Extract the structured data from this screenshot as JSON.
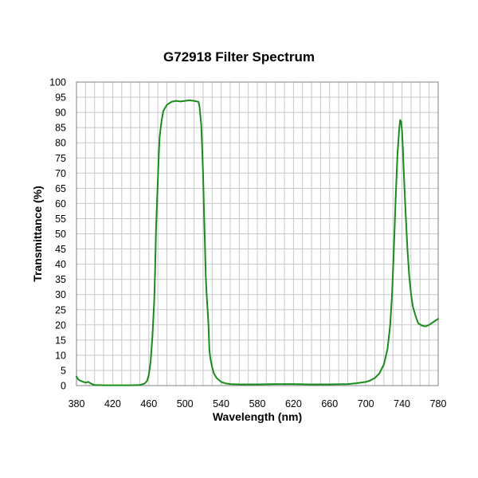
{
  "chart_data": {
    "type": "line",
    "title": "G72918 Filter Spectrum",
    "xlabel": "Wavelength (nm)",
    "ylabel": "Transmittance (%)",
    "xlim": [
      380,
      780
    ],
    "ylim": [
      0,
      100
    ],
    "x_ticks": [
      380,
      420,
      460,
      500,
      540,
      580,
      620,
      660,
      700,
      740,
      780
    ],
    "y_ticks": [
      0,
      5,
      10,
      15,
      20,
      25,
      30,
      35,
      40,
      45,
      50,
      55,
      60,
      65,
      70,
      75,
      80,
      85,
      90,
      95,
      100
    ],
    "grid": true,
    "line_color": "#1a8c1a",
    "series": [
      {
        "points": [
          [
            380,
            3
          ],
          [
            382,
            2
          ],
          [
            385,
            1.5
          ],
          [
            390,
            1
          ],
          [
            393,
            1.2
          ],
          [
            397,
            0.5
          ],
          [
            400,
            0.2
          ],
          [
            410,
            0.1
          ],
          [
            420,
            0.1
          ],
          [
            440,
            0.1
          ],
          [
            450,
            0.2
          ],
          [
            455,
            0.6
          ],
          [
            458,
            1.5
          ],
          [
            460,
            3.5
          ],
          [
            462,
            8
          ],
          [
            464,
            16
          ],
          [
            466,
            28
          ],
          [
            467,
            38
          ],
          [
            468,
            52
          ],
          [
            470,
            68
          ],
          [
            471,
            76
          ],
          [
            472,
            82
          ],
          [
            474,
            87
          ],
          [
            476,
            90.5
          ],
          [
            478,
            91.5
          ],
          [
            480,
            92.5
          ],
          [
            485,
            93.5
          ],
          [
            490,
            93.8
          ],
          [
            495,
            93.6
          ],
          [
            500,
            93.8
          ],
          [
            505,
            94
          ],
          [
            510,
            93.8
          ],
          [
            515,
            93.5
          ],
          [
            516,
            92
          ],
          [
            518,
            86
          ],
          [
            519,
            78
          ],
          [
            520,
            70
          ],
          [
            521,
            58
          ],
          [
            522,
            47
          ],
          [
            523,
            36
          ],
          [
            524,
            30
          ],
          [
            525,
            25
          ],
          [
            526,
            20
          ],
          [
            527,
            12
          ],
          [
            528,
            9
          ],
          [
            530,
            6
          ],
          [
            532,
            4
          ],
          [
            535,
            2.5
          ],
          [
            540,
            1.2
          ],
          [
            545,
            0.7
          ],
          [
            550,
            0.5
          ],
          [
            560,
            0.4
          ],
          [
            580,
            0.4
          ],
          [
            600,
            0.5
          ],
          [
            620,
            0.5
          ],
          [
            640,
            0.4
          ],
          [
            660,
            0.4
          ],
          [
            680,
            0.5
          ],
          [
            690,
            0.8
          ],
          [
            700,
            1.2
          ],
          [
            705,
            1.7
          ],
          [
            710,
            2.5
          ],
          [
            715,
            4
          ],
          [
            720,
            7
          ],
          [
            724,
            12
          ],
          [
            727,
            20
          ],
          [
            729,
            30
          ],
          [
            731,
            45
          ],
          [
            733,
            62
          ],
          [
            735,
            76
          ],
          [
            737,
            85
          ],
          [
            738,
            87.5
          ],
          [
            739,
            87
          ],
          [
            740,
            84
          ],
          [
            741,
            78
          ],
          [
            742,
            70
          ],
          [
            744,
            57
          ],
          [
            746,
            45
          ],
          [
            748,
            36
          ],
          [
            750,
            30
          ],
          [
            752,
            26
          ],
          [
            755,
            23
          ],
          [
            758,
            20.5
          ],
          [
            762,
            19.8
          ],
          [
            766,
            19.5
          ],
          [
            770,
            20
          ],
          [
            775,
            21
          ],
          [
            780,
            22
          ]
        ]
      }
    ]
  }
}
